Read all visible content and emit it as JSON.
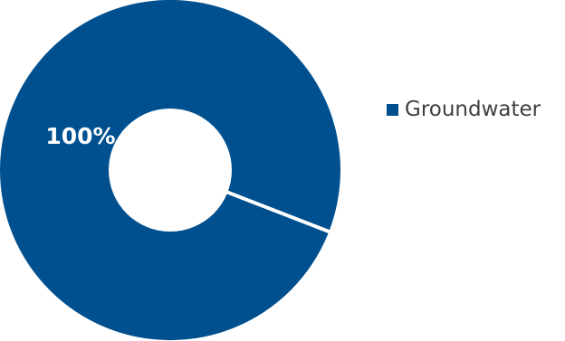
{
  "chart_data": {
    "type": "pie",
    "subtype": "donut",
    "categories": [
      "Groundwater"
    ],
    "values": [
      100
    ],
    "data_labels": [
      "100%"
    ],
    "colors": [
      "#00508f"
    ],
    "legend_position": "right",
    "legend": [
      {
        "label": "Groundwater",
        "color": "#00508f"
      }
    ]
  }
}
